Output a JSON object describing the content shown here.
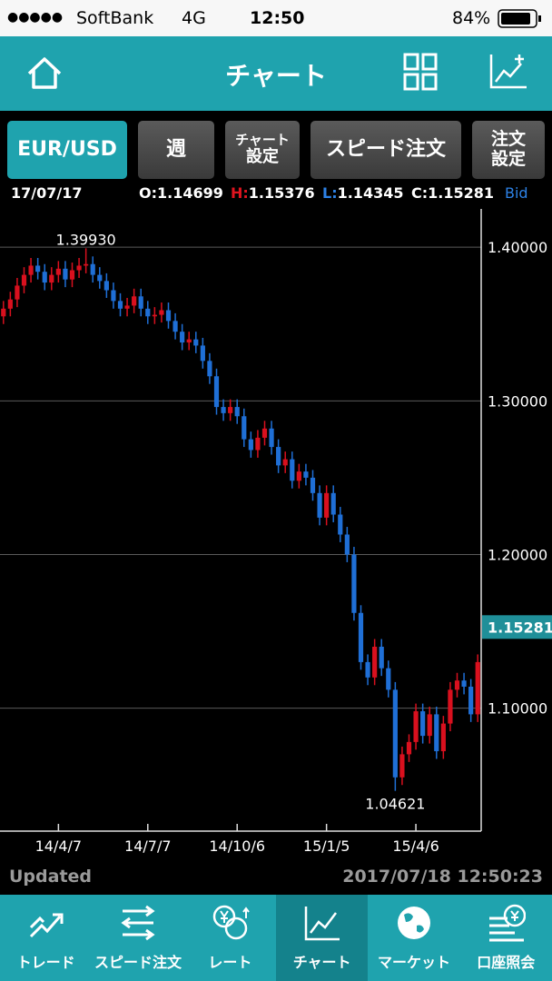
{
  "status_bar": {
    "carrier": "SoftBank",
    "network": "4G",
    "time": "12:50",
    "battery": "84%"
  },
  "header": {
    "title": "チャート"
  },
  "toolbar": {
    "pair": "EUR/USD",
    "period": "週",
    "chart_settings": [
      "チャート",
      "設定"
    ],
    "speed_order": "スピード注文",
    "order_settings": [
      "注文",
      "設定"
    ]
  },
  "info": {
    "date": "17/07/17",
    "ohlc": [
      {
        "key": "O:",
        "value": "1.14699"
      },
      {
        "key": "H:",
        "value": "1.15376"
      },
      {
        "key": "L:",
        "value": "1.14345"
      },
      {
        "key": "C:",
        "value": "1.15281"
      }
    ],
    "side": "Bid"
  },
  "chart_data": {
    "type": "candlestick",
    "categories": [
      null,
      null,
      null,
      null,
      null,
      null,
      null,
      null,
      "14/4/7",
      null,
      null,
      null,
      null,
      null,
      null,
      null,
      null,
      null,
      null,
      null,
      null,
      "14/7/7",
      null,
      null,
      null,
      null,
      null,
      null,
      null,
      null,
      null,
      null,
      null,
      null,
      "14/10/6",
      null,
      null,
      null,
      null,
      null,
      null,
      null,
      null,
      null,
      null,
      null,
      null,
      "15/1/5",
      null,
      null,
      null,
      null,
      null,
      null,
      null,
      null,
      null,
      null,
      null,
      null,
      "15/4/6",
      null,
      null,
      null,
      null,
      null,
      null,
      null,
      null,
      null
    ],
    "candles": [
      [
        1.355,
        1.365,
        1.35,
        1.36
      ],
      [
        1.36,
        1.371,
        1.355,
        1.366
      ],
      [
        1.366,
        1.38,
        1.361,
        1.375
      ],
      [
        1.375,
        1.387,
        1.37,
        1.382
      ],
      [
        1.382,
        1.393,
        1.377,
        1.388
      ],
      [
        1.388,
        1.393,
        1.379,
        1.384
      ],
      [
        1.384,
        1.389,
        1.372,
        1.377
      ],
      [
        1.377,
        1.387,
        1.372,
        1.382
      ],
      [
        1.382,
        1.391,
        1.377,
        1.386
      ],
      [
        1.386,
        1.391,
        1.374,
        1.379
      ],
      [
        1.379,
        1.39,
        1.374,
        1.385
      ],
      [
        1.385,
        1.393,
        1.38,
        1.388
      ],
      [
        1.388,
        1.3993,
        1.383,
        1.389
      ],
      [
        1.389,
        1.394,
        1.377,
        1.382
      ],
      [
        1.382,
        1.387,
        1.373,
        1.378
      ],
      [
        1.378,
        1.383,
        1.367,
        1.372
      ],
      [
        1.372,
        1.377,
        1.36,
        1.365
      ],
      [
        1.365,
        1.37,
        1.355,
        1.36
      ],
      [
        1.36,
        1.367,
        1.355,
        1.362
      ],
      [
        1.362,
        1.373,
        1.357,
        1.368
      ],
      [
        1.368,
        1.373,
        1.355,
        1.36
      ],
      [
        1.36,
        1.365,
        1.35,
        1.355
      ],
      [
        1.355,
        1.361,
        1.35,
        1.356
      ],
      [
        1.356,
        1.364,
        1.351,
        1.359
      ],
      [
        1.359,
        1.364,
        1.347,
        1.352
      ],
      [
        1.352,
        1.357,
        1.34,
        1.345
      ],
      [
        1.345,
        1.35,
        1.333,
        1.338
      ],
      [
        1.338,
        1.345,
        1.333,
        1.34
      ],
      [
        1.34,
        1.345,
        1.331,
        1.336
      ],
      [
        1.336,
        1.341,
        1.321,
        1.326
      ],
      [
        1.326,
        1.331,
        1.311,
        1.316
      ],
      [
        1.316,
        1.321,
        1.291,
        1.296
      ],
      [
        1.296,
        1.301,
        1.287,
        1.292
      ],
      [
        1.292,
        1.301,
        1.287,
        1.296
      ],
      [
        1.296,
        1.301,
        1.285,
        1.29
      ],
      [
        1.29,
        1.295,
        1.27,
        1.275
      ],
      [
        1.275,
        1.28,
        1.263,
        1.268
      ],
      [
        1.268,
        1.281,
        1.263,
        1.276
      ],
      [
        1.276,
        1.287,
        1.271,
        1.282
      ],
      [
        1.282,
        1.287,
        1.265,
        1.27
      ],
      [
        1.27,
        1.275,
        1.253,
        1.258
      ],
      [
        1.258,
        1.267,
        1.253,
        1.262
      ],
      [
        1.262,
        1.267,
        1.243,
        1.248
      ],
      [
        1.248,
        1.259,
        1.243,
        1.254
      ],
      [
        1.254,
        1.259,
        1.245,
        1.25
      ],
      [
        1.25,
        1.255,
        1.235,
        1.24
      ],
      [
        1.24,
        1.245,
        1.219,
        1.224
      ],
      [
        1.224,
        1.245,
        1.219,
        1.24
      ],
      [
        1.24,
        1.245,
        1.221,
        1.226
      ],
      [
        1.226,
        1.231,
        1.208,
        1.213
      ],
      [
        1.213,
        1.218,
        1.195,
        1.2
      ],
      [
        1.2,
        1.205,
        1.157,
        1.162
      ],
      [
        1.162,
        1.167,
        1.125,
        1.13
      ],
      [
        1.13,
        1.135,
        1.115,
        1.12
      ],
      [
        1.12,
        1.145,
        1.115,
        1.14
      ],
      [
        1.14,
        1.145,
        1.121,
        1.126
      ],
      [
        1.126,
        1.131,
        1.107,
        1.112
      ],
      [
        1.112,
        1.117,
        1.04621,
        1.055
      ],
      [
        1.055,
        1.075,
        1.05,
        1.07
      ],
      [
        1.07,
        1.083,
        1.065,
        1.078
      ],
      [
        1.078,
        1.103,
        1.073,
        1.098
      ],
      [
        1.098,
        1.103,
        1.077,
        1.082
      ],
      [
        1.082,
        1.101,
        1.077,
        1.096
      ],
      [
        1.096,
        1.101,
        1.067,
        1.072
      ],
      [
        1.072,
        1.095,
        1.067,
        1.09
      ],
      [
        1.09,
        1.117,
        1.085,
        1.112
      ],
      [
        1.112,
        1.123,
        1.107,
        1.118
      ],
      [
        1.118,
        1.123,
        1.109,
        1.114
      ],
      [
        1.114,
        1.119,
        1.091,
        1.096
      ],
      [
        1.096,
        1.135,
        1.091,
        1.13
      ]
    ],
    "up_color": "#d9101e",
    "down_color": "#1f6fd6",
    "high_label": "1.39930",
    "low_label": "1.04621",
    "last_price": {
      "value": 1.15281,
      "label": "1.15281"
    },
    "ylim": [
      1.02,
      1.419
    ],
    "yticks": [
      {
        "value": 1.1,
        "label": "1.10000"
      },
      {
        "value": 1.2,
        "label": "1.20000"
      },
      {
        "value": 1.3,
        "label": "1.30000"
      },
      {
        "value": 1.4,
        "label": "1.40000"
      }
    ],
    "grid": true
  },
  "footer": {
    "updated": "Updated",
    "timestamp": "2017/07/18 12:50:23"
  },
  "tabs": [
    "トレード",
    "スピード注文",
    "レート",
    "チャート",
    "マーケット",
    "口座照会"
  ]
}
